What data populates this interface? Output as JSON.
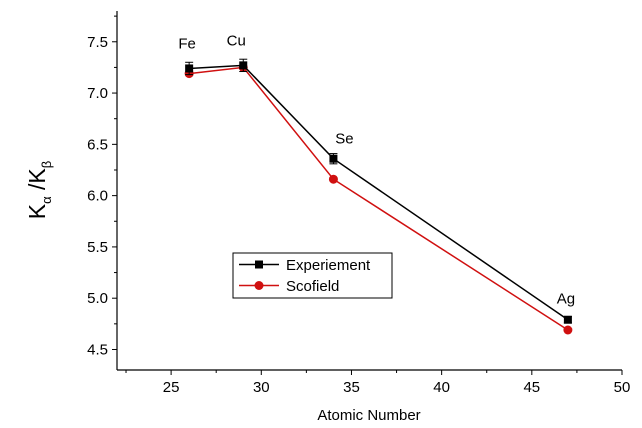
{
  "chart_data": {
    "type": "line",
    "title": "",
    "xlabel": "Atomic Number",
    "ylabel": {
      "main": "K",
      "alpha_sub": "α",
      "separator": " /K",
      "beta_sub": "β"
    },
    "xlim": [
      22,
      50
    ],
    "ylim": [
      4.3,
      7.8
    ],
    "x_ticks": [
      "25",
      "30",
      "35",
      "40",
      "45",
      "50"
    ],
    "y_ticks": [
      "4.5",
      "5.0",
      "5.5",
      "6.0",
      "6.5",
      "7.0",
      "7.5"
    ],
    "x_tick_values": [
      25,
      30,
      35,
      40,
      45,
      50
    ],
    "y_tick_values": [
      4.5,
      5.0,
      5.5,
      6.0,
      6.5,
      7.0,
      7.5
    ],
    "grid": false,
    "legend_position": "center-left",
    "series": [
      {
        "name": "Experiement",
        "color": "#000000",
        "marker": "square",
        "x": [
          26,
          29,
          34,
          47
        ],
        "y": [
          7.24,
          7.27,
          6.36,
          4.79
        ],
        "yerr": [
          0.06,
          0.06,
          0.05,
          0.03
        ]
      },
      {
        "name": "Scofield",
        "color": "#d01010",
        "marker": "circle",
        "x": [
          26,
          29,
          34,
          47
        ],
        "y": [
          7.19,
          7.25,
          6.16,
          4.69
        ]
      }
    ],
    "annotations": [
      {
        "text": "Fe",
        "x": 26,
        "y": 7.24
      },
      {
        "text": "Cu",
        "x": 29,
        "y": 7.27
      },
      {
        "text": "Se",
        "x": 34,
        "y": 6.36
      },
      {
        "text": "Ag",
        "x": 47,
        "y": 4.79
      }
    ]
  }
}
